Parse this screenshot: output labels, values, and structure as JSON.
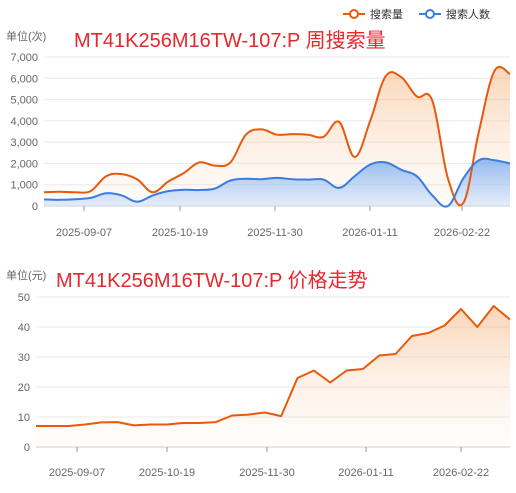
{
  "legend": {
    "items": [
      {
        "label": "搜索量",
        "color": "#e8590c"
      },
      {
        "label": "搜索人数",
        "color": "#3b7ddd"
      }
    ]
  },
  "chart_data": [
    {
      "type": "area",
      "title": "MT41K256M16TW-107:P 周搜索量",
      "unit_label": "单位(次)",
      "x_tick_labels": [
        "2025-09-07",
        "2025-10-19",
        "2025-11-30",
        "2026-01-11",
        "2026-02-22"
      ],
      "ylim": [
        0,
        7000
      ],
      "y_ticks": [
        0,
        1000,
        2000,
        3000,
        4000,
        5000,
        6000,
        7000
      ],
      "y_tick_labels": [
        "0",
        "1,000",
        "2,000",
        "3,000",
        "4,000",
        "5,000",
        "6,000",
        "7,000"
      ],
      "grid": true,
      "series": [
        {
          "name": "搜索量",
          "color": "#e8590c",
          "values": [
            650,
            670,
            650,
            700,
            1400,
            1500,
            1250,
            650,
            1150,
            1550,
            2050,
            1900,
            2050,
            3350,
            3600,
            3350,
            3380,
            3350,
            3250,
            3950,
            2300,
            4000,
            6100,
            6050,
            5150,
            4950,
            1300,
            150,
            3500,
            6350,
            6200
          ]
        },
        {
          "name": "搜索人数",
          "color": "#3b7ddd",
          "values": [
            310,
            290,
            320,
            380,
            600,
            500,
            200,
            500,
            700,
            760,
            750,
            820,
            1200,
            1280,
            1260,
            1320,
            1260,
            1240,
            1240,
            850,
            1400,
            1950,
            2050,
            1700,
            1400,
            500,
            0,
            1300,
            2150,
            2150,
            2000
          ]
        }
      ]
    },
    {
      "type": "area",
      "title": "MT41K256M16TW-107:P 价格走势",
      "unit_label": "单位(元)",
      "x_tick_labels": [
        "2025-09-07",
        "2025-10-19",
        "2025-11-30",
        "2026-01-11",
        "2026-02-22"
      ],
      "ylim": [
        0,
        50
      ],
      "y_ticks": [
        0,
        10,
        20,
        30,
        40,
        50
      ],
      "y_tick_labels": [
        "0",
        "10",
        "20",
        "30",
        "40",
        "50"
      ],
      "grid": true,
      "series": [
        {
          "name": "价格",
          "color": "#e8590c",
          "values": [
            7,
            7,
            7,
            7.5,
            8.2,
            8.3,
            7.2,
            7.5,
            7.5,
            8,
            8,
            8.3,
            10.5,
            10.8,
            11.5,
            10.3,
            23,
            25.5,
            21.5,
            25.5,
            26,
            30.5,
            31,
            37,
            38,
            40.5,
            46,
            40,
            47,
            42.5
          ]
        }
      ]
    }
  ]
}
